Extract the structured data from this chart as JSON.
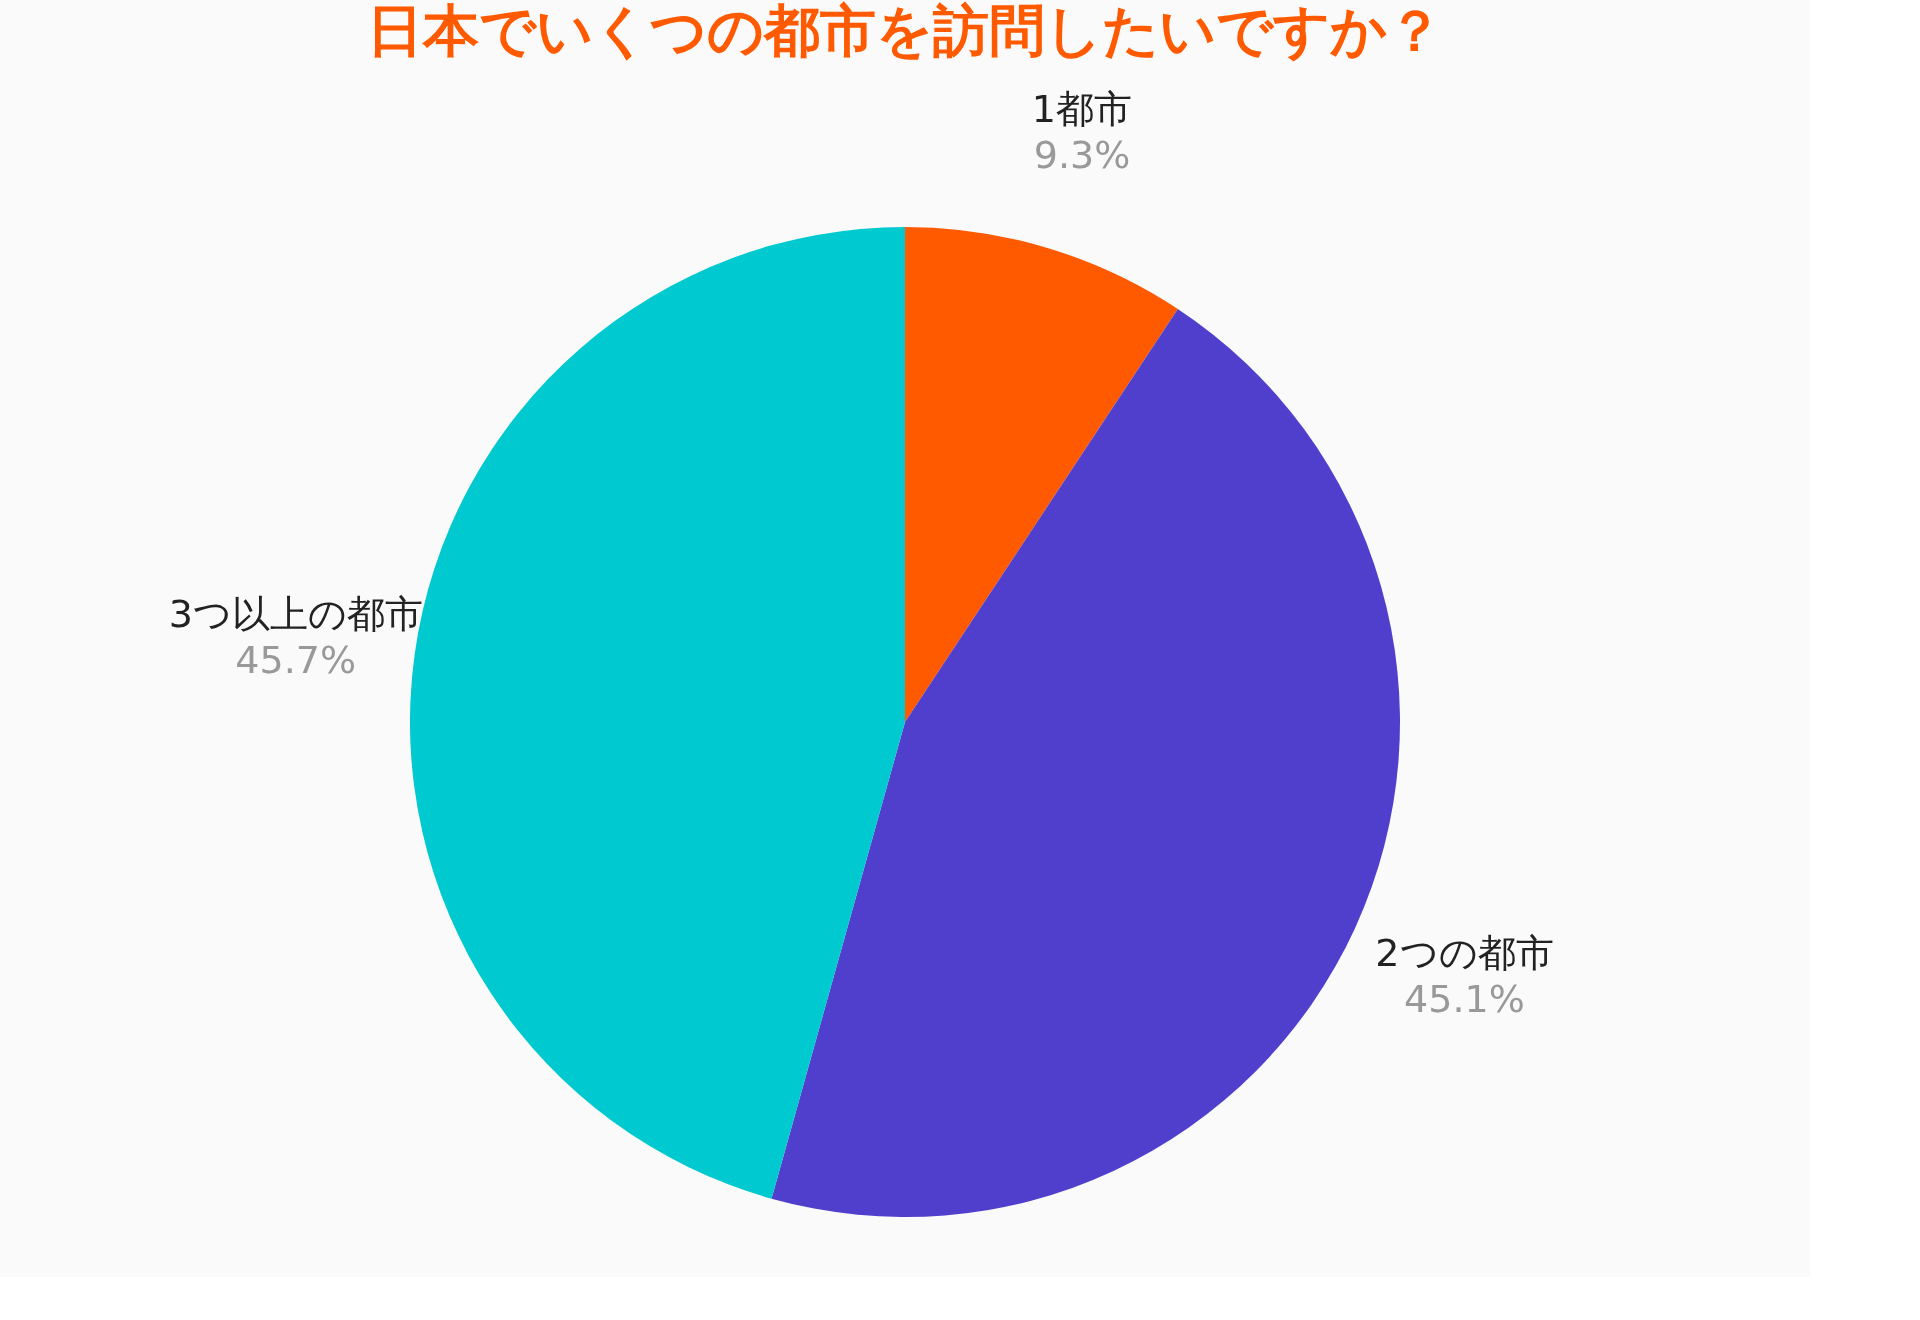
{
  "chart_data": {
    "type": "pie",
    "title": "日本でいくつの都市を訪問したいですか？",
    "categories": [
      "1都市",
      "2つの都市",
      "3つ以上の都市"
    ],
    "values": [
      9.3,
      45.1,
      45.7
    ],
    "value_labels": [
      "9.3%",
      "45.1%",
      "45.7%"
    ],
    "colors": [
      "#ff5a00",
      "#4f3fcc",
      "#00c9d0"
    ],
    "legend": false
  }
}
